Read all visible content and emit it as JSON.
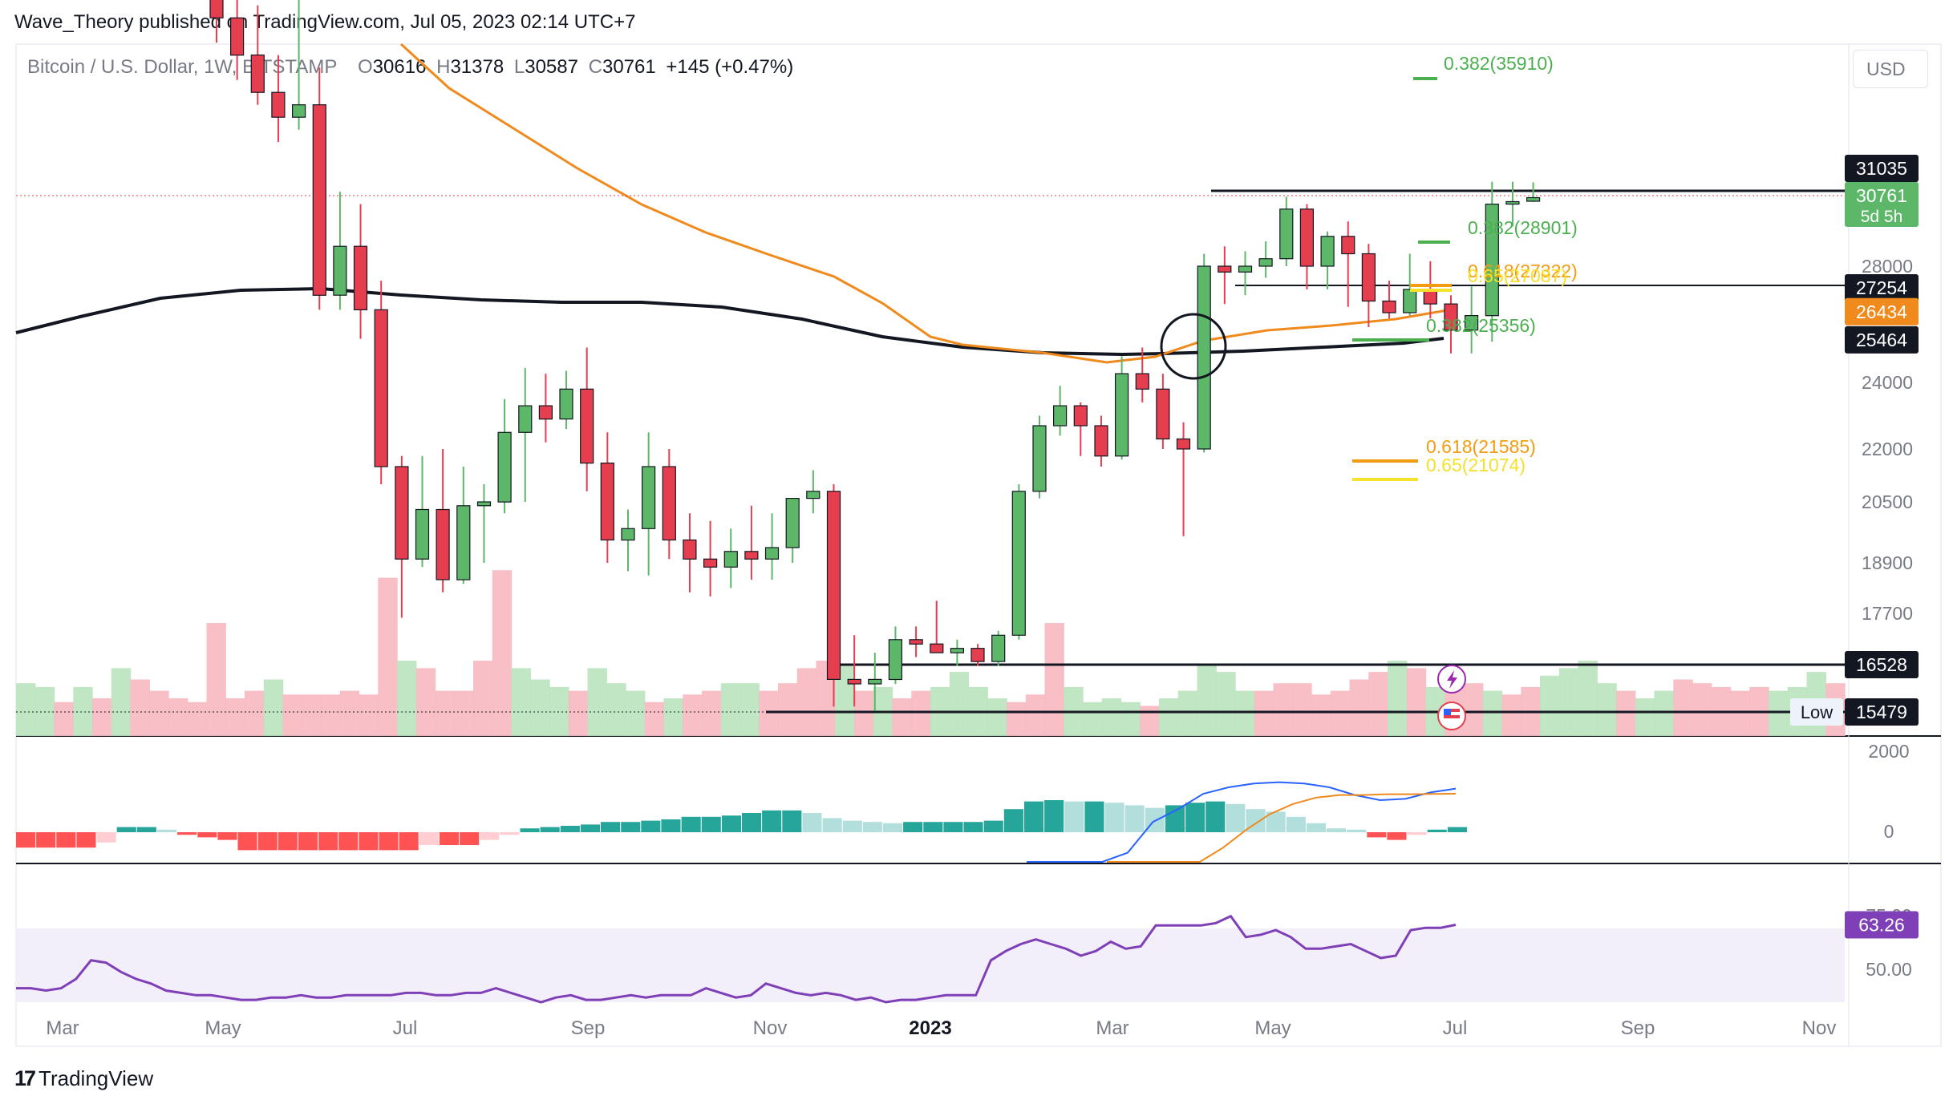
{
  "header": {
    "author": "Wave_Theory",
    "published_text": "Wave_Theory published on TradingView.com, Jul 05, 2023 02:14 UTC+7",
    "symbol_line": "Bitcoin / U.S. Dollar, 1W, BITSTAMP",
    "ohlc": {
      "o_label": "O",
      "o": "30616",
      "h_label": "H",
      "h": "31378",
      "l_label": "L",
      "l": "30587",
      "c_label": "C",
      "c": "30761",
      "change": "+145 (+0.47%)"
    },
    "currency": "USD"
  },
  "footer": {
    "brand": "TradingView",
    "logo": "17"
  },
  "colors": {
    "up": "#5cb868",
    "down": "#e53e4e",
    "ema_orange": "#f08a1c",
    "sma_black": "#131722",
    "fib_green": "#4caf50",
    "fib_orange": "#f39c12",
    "fib_yellow": "#f5e02a",
    "macd_blue": "#2962ff",
    "signal_orange": "#f08a1c",
    "rsi_purple": "#7e3fb7",
    "hist_pos_strong": "#26a69a",
    "hist_pos_weak": "#b2dfdb",
    "hist_neg_strong": "#ff5252",
    "hist_neg_weak": "#ffcdd2"
  },
  "chart_data": {
    "type": "candlestick",
    "timeframe": "1W",
    "x_axis_labels": [
      "Mar",
      "May",
      "Jul",
      "Sep",
      "Nov",
      "2023",
      "Mar",
      "May",
      "Jul",
      "Sep",
      "Nov"
    ],
    "price_axis_ticks": [
      "28000",
      "24000",
      "22000",
      "20500",
      "18900",
      "17700"
    ],
    "price_labels": [
      {
        "text": "31035",
        "value": 31035,
        "style": "black"
      },
      {
        "text": "30761",
        "value": 30761,
        "style": "green",
        "sub": "5d 5h"
      },
      {
        "text": "27254",
        "value": 27254,
        "style": "black"
      },
      {
        "text": "26434",
        "value": 26434,
        "style": "orange"
      },
      {
        "text": "25464",
        "value": 25464,
        "style": "black"
      },
      {
        "text": "16528",
        "value": 16528,
        "style": "black"
      },
      {
        "text": "15479",
        "value": 15479,
        "style": "black",
        "prefix": "Low"
      }
    ],
    "fib_labels": [
      {
        "text": "0.382(35910)",
        "color": "green"
      },
      {
        "text": "0.382(28901)",
        "color": "green"
      },
      {
        "text": "0.618(27322)",
        "color": "orange"
      },
      {
        "text": "0.65(27087)",
        "color": "yellow"
      },
      {
        "text": "0.382(25356)",
        "color": "green"
      },
      {
        "text": "0.618(21585)",
        "color": "orange"
      },
      {
        "text": "0.65(21074)",
        "color": "yellow"
      }
    ],
    "candles": [
      [
        45000,
        47000,
        37000,
        38000
      ],
      [
        38000,
        40000,
        35500,
        36500
      ],
      [
        36500,
        38500,
        34500,
        35000
      ],
      [
        35000,
        36500,
        33000,
        34000
      ],
      [
        34000,
        41000,
        33500,
        34500
      ],
      [
        34500,
        36000,
        26500,
        27000
      ],
      [
        27000,
        31000,
        26500,
        28800
      ],
      [
        28800,
        30500,
        25500,
        26500
      ],
      [
        26500,
        27500,
        21000,
        21500
      ],
      [
        21500,
        21800,
        17600,
        19000
      ],
      [
        19000,
        21800,
        18800,
        20300
      ],
      [
        20300,
        22000,
        18200,
        18500
      ],
      [
        18500,
        21500,
        18400,
        20400
      ],
      [
        20400,
        21000,
        18900,
        20500
      ],
      [
        20500,
        23500,
        20200,
        22500
      ],
      [
        22500,
        24500,
        20500,
        23300
      ],
      [
        23300,
        24300,
        22200,
        22900
      ],
      [
        22900,
        24400,
        22600,
        23800
      ],
      [
        23800,
        25200,
        20800,
        21600
      ],
      [
        21600,
        22500,
        18900,
        19500
      ],
      [
        19500,
        20300,
        18700,
        19800
      ],
      [
        19800,
        22500,
        18600,
        21500
      ],
      [
        21500,
        22000,
        19000,
        19500
      ],
      [
        19500,
        20200,
        18200,
        19000
      ],
      [
        19000,
        20000,
        18100,
        18800
      ],
      [
        18800,
        19800,
        18300,
        19200
      ],
      [
        19200,
        20400,
        18500,
        19000
      ],
      [
        19000,
        20200,
        18500,
        19300
      ],
      [
        19300,
        20500,
        18900,
        20600
      ],
      [
        20600,
        21400,
        20200,
        20800
      ],
      [
        20800,
        21000,
        15600,
        16200
      ],
      [
        16200,
        17200,
        15600,
        16100
      ],
      [
        16100,
        16800,
        15500,
        16200
      ],
      [
        16200,
        17400,
        16100,
        17100
      ],
      [
        17100,
        17400,
        16700,
        17000
      ],
      [
        17000,
        18000,
        16800,
        16800
      ],
      [
        16800,
        17100,
        16500,
        16900
      ],
      [
        16900,
        17000,
        16500,
        16600
      ],
      [
        16600,
        17300,
        16500,
        17200
      ],
      [
        17200,
        21000,
        17100,
        20800
      ],
      [
        20800,
        23000,
        20600,
        22700
      ],
      [
        22700,
        23900,
        22400,
        23300
      ],
      [
        23300,
        23400,
        21800,
        22700
      ],
      [
        22700,
        23000,
        21500,
        21800
      ],
      [
        21800,
        24900,
        21700,
        24300
      ],
      [
        24300,
        25200,
        23400,
        23800
      ],
      [
        23800,
        24300,
        22000,
        22300
      ],
      [
        22300,
        22800,
        19600,
        22000
      ],
      [
        22000,
        28500,
        21900,
        28000
      ],
      [
        28000,
        28800,
        26700,
        27800
      ],
      [
        27800,
        28600,
        27000,
        28000
      ],
      [
        28000,
        29000,
        27600,
        28300
      ],
      [
        28300,
        30800,
        28000,
        30300
      ],
      [
        30300,
        30500,
        27200,
        28000
      ],
      [
        28000,
        29400,
        27200,
        29200
      ],
      [
        29200,
        29800,
        26600,
        28500
      ],
      [
        28500,
        28900,
        25900,
        26800
      ],
      [
        26800,
        27500,
        26200,
        26400
      ],
      [
        26400,
        28500,
        26300,
        27200
      ],
      [
        27200,
        28200,
        26200,
        26700
      ],
      [
        26700,
        27000,
        25000,
        25800
      ],
      [
        25800,
        27300,
        25000,
        26300
      ],
      [
        26300,
        31400,
        25400,
        30500
      ],
      [
        30500,
        31400,
        29600,
        30600
      ],
      [
        30616,
        31378,
        30587,
        30761
      ]
    ],
    "volume": [
      [
        14,
        1
      ],
      [
        13,
        1
      ],
      [
        9,
        0
      ],
      [
        13,
        1
      ],
      [
        10,
        0
      ],
      [
        18,
        1
      ],
      [
        15,
        0
      ],
      [
        12,
        0
      ],
      [
        10,
        0
      ],
      [
        9,
        0
      ],
      [
        30,
        0
      ],
      [
        10,
        0
      ],
      [
        12,
        0
      ],
      [
        15,
        1
      ],
      [
        11,
        0
      ],
      [
        11,
        0
      ],
      [
        11,
        0
      ],
      [
        12,
        0
      ],
      [
        11,
        0
      ],
      [
        42,
        0
      ],
      [
        20,
        1
      ],
      [
        18,
        0
      ],
      [
        12,
        0
      ],
      [
        12,
        0
      ],
      [
        20,
        0
      ],
      [
        44,
        0
      ],
      [
        18,
        1
      ],
      [
        15,
        1
      ],
      [
        13,
        1
      ],
      [
        12,
        0
      ],
      [
        18,
        1
      ],
      [
        14,
        1
      ],
      [
        12,
        1
      ],
      [
        9,
        0
      ],
      [
        10,
        1
      ],
      [
        11,
        0
      ],
      [
        12,
        0
      ],
      [
        14,
        1
      ],
      [
        14,
        1
      ],
      [
        12,
        0
      ],
      [
        14,
        0
      ],
      [
        18,
        0
      ],
      [
        20,
        0
      ],
      [
        19,
        1
      ],
      [
        12,
        0
      ],
      [
        13,
        1
      ],
      [
        10,
        0
      ],
      [
        12,
        0
      ],
      [
        13,
        1
      ],
      [
        17,
        1
      ],
      [
        13,
        1
      ],
      [
        10,
        1
      ],
      [
        9,
        0
      ],
      [
        11,
        0
      ],
      [
        30,
        0
      ],
      [
        13,
        1
      ],
      [
        9,
        1
      ],
      [
        10,
        1
      ],
      [
        9,
        1
      ],
      [
        8,
        0
      ],
      [
        10,
        1
      ],
      [
        12,
        1
      ],
      [
        19,
        1
      ],
      [
        17,
        1
      ],
      [
        12,
        1
      ],
      [
        12,
        0
      ],
      [
        14,
        0
      ],
      [
        14,
        0
      ],
      [
        11,
        0
      ],
      [
        12,
        0
      ],
      [
        15,
        0
      ],
      [
        17,
        0
      ],
      [
        20,
        1
      ],
      [
        18,
        0
      ],
      [
        13,
        1
      ],
      [
        15,
        0
      ],
      [
        14,
        0
      ],
      [
        12,
        1
      ],
      [
        11,
        0
      ],
      [
        13,
        0
      ],
      [
        16,
        1
      ],
      [
        18,
        1
      ],
      [
        20,
        1
      ],
      [
        14,
        1
      ],
      [
        12,
        0
      ],
      [
        10,
        1
      ],
      [
        12,
        1
      ],
      [
        15,
        0
      ],
      [
        14,
        0
      ],
      [
        13,
        0
      ],
      [
        12,
        0
      ],
      [
        13,
        0
      ],
      [
        12,
        1
      ],
      [
        13,
        1
      ],
      [
        17,
        1
      ],
      [
        14,
        0
      ]
    ],
    "macd": {
      "axis_ticks": [
        "2000",
        "0"
      ],
      "histogram": [
        -600,
        -600,
        -600,
        -600,
        -400,
        200,
        200,
        100,
        -100,
        -200,
        -300,
        -700,
        -700,
        -700,
        -700,
        -700,
        -700,
        -700,
        -700,
        -700,
        -500,
        -500,
        -500,
        -300,
        -100,
        150,
        200,
        250,
        300,
        400,
        400,
        450,
        500,
        600,
        600,
        650,
        750,
        850,
        850,
        750,
        550,
        450,
        400,
        350,
        400,
        400,
        400,
        400,
        450,
        900,
        1200,
        1250,
        1200,
        1200,
        1150,
        1050,
        950,
        1050,
        1150,
        1200,
        1100,
        900,
        800,
        600,
        350,
        150,
        100,
        -200,
        -300,
        -100,
        100,
        200
      ],
      "macd_line": [
        -4000,
        -3500,
        -2800,
        -2000,
        -800,
        400,
        900,
        1500,
        1750,
        1900,
        1950,
        1900,
        1750,
        1450,
        1250,
        1300,
        1550,
        1700
      ],
      "signal_line": [
        -4000,
        -3500,
        -2900,
        -2200,
        -1500,
        -600,
        100,
        700,
        1100,
        1350,
        1450,
        1450,
        1480,
        1480,
        1490,
        1500
      ]
    },
    "rsi": {
      "value_label": "63.26",
      "axis_ticks": [
        "75.00",
        "50.00"
      ],
      "values": [
        36,
        36,
        35,
        36,
        40,
        48,
        47,
        43,
        40,
        38,
        35,
        34,
        33,
        33,
        32,
        31,
        31,
        32,
        32,
        33,
        32,
        32,
        33,
        33,
        33,
        33,
        34,
        34,
        33,
        33,
        34,
        34,
        36,
        34,
        32,
        30,
        32,
        33,
        31,
        31,
        32,
        33,
        32,
        33,
        33,
        33,
        36,
        34,
        32,
        33,
        38,
        36,
        34,
        33,
        34,
        33,
        31,
        32,
        30,
        31,
        31,
        32,
        33,
        33,
        33,
        48,
        52,
        55,
        57,
        55,
        53,
        50,
        52,
        56,
        53,
        54,
        63,
        63,
        63,
        63,
        64,
        67,
        58,
        59,
        61,
        58,
        53,
        53,
        54,
        55,
        52,
        49,
        50,
        61,
        62,
        62,
        63.26
      ]
    }
  }
}
